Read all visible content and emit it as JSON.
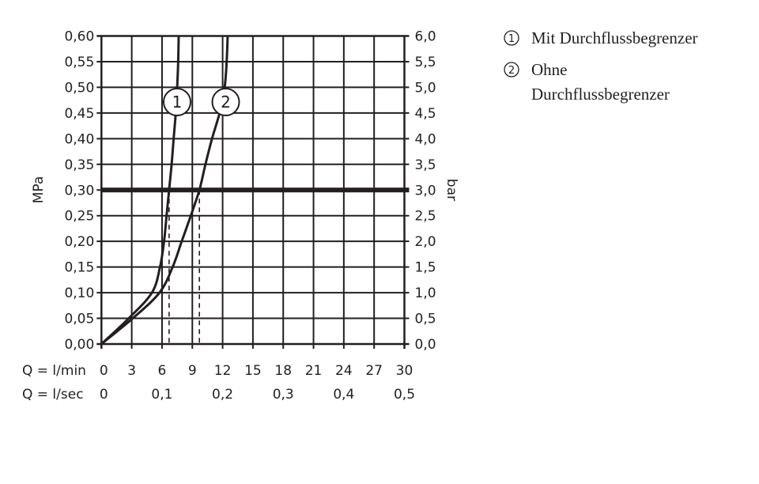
{
  "chart_data": {
    "type": "line",
    "title": "",
    "ylabel_left": "MPa",
    "ylabel_right": "bar",
    "xlabel_rows": [
      {
        "label": "Q = l/min",
        "ticks": [
          "0",
          "3",
          "6",
          "9",
          "12",
          "15",
          "18",
          "21",
          "24",
          "27",
          "30"
        ],
        "values": [
          0,
          3,
          6,
          9,
          12,
          15,
          18,
          21,
          24,
          27,
          30
        ]
      },
      {
        "label": "Q = l/sec",
        "ticks": [
          "0",
          "0,1",
          "0,2",
          "0,3",
          "0,4",
          "0,5"
        ],
        "values": [
          0,
          6,
          12,
          18,
          24,
          30
        ]
      }
    ],
    "xlim": [
      0,
      30
    ],
    "ylim": [
      0,
      0.6
    ],
    "yticks_left": [
      "0,00",
      "0,05",
      "0,10",
      "0,15",
      "0,20",
      "0,25",
      "0,30",
      "0,35",
      "0,40",
      "0,45",
      "0,50",
      "0,55",
      "0,60"
    ],
    "yticks_right": [
      "0,0",
      "0,5",
      "1,0",
      "1,5",
      "2,0",
      "2,5",
      "3,0",
      "3,5",
      "4,0",
      "4,5",
      "5,0",
      "5,5",
      "6,0"
    ],
    "grid": true,
    "reference_line_y": 0.3,
    "series": [
      {
        "marker": "1",
        "name": "Mit Durchflussbegrenzer",
        "x": [
          0,
          2.7,
          5.0,
          5.8,
          6.2,
          6.45,
          6.7,
          6.95,
          7.15,
          7.36,
          7.5,
          7.6,
          7.65
        ],
        "y": [
          0,
          0.05,
          0.1,
          0.15,
          0.2,
          0.25,
          0.3,
          0.35,
          0.4,
          0.45,
          0.5,
          0.55,
          0.6
        ],
        "flow_at_0_3MPa": 6.7
      },
      {
        "marker": "2",
        "name": "Ohne Durchflussbegrenzer",
        "x": [
          0,
          3.1,
          5.75,
          7.05,
          7.95,
          8.85,
          9.7,
          10.3,
          10.95,
          11.7,
          12.2,
          12.4,
          12.5
        ],
        "y": [
          0,
          0.05,
          0.1,
          0.15,
          0.2,
          0.25,
          0.3,
          0.35,
          0.4,
          0.45,
          0.5,
          0.55,
          0.6
        ],
        "flow_at_0_3MPa": 9.7
      }
    ],
    "legend": {
      "placement": "right",
      "entries": [
        {
          "marker": "1",
          "text": "Mit Durchflussbegrenzer"
        },
        {
          "marker": "2",
          "lines": [
            "Ohne",
            "Durchflussbegrenzer"
          ]
        }
      ]
    },
    "colors": {
      "ink": "#231f20"
    }
  }
}
